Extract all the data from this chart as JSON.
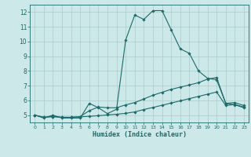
{
  "xlabel": "Humidex (Indice chaleur)",
  "background_color": "#cce8e8",
  "grid_color": "#aacccc",
  "line_color": "#1a6b6b",
  "xmin": -0.5,
  "xmax": 23.5,
  "ymin": 4.5,
  "ymax": 12.5,
  "yticks": [
    5,
    6,
    7,
    8,
    9,
    10,
    11,
    12
  ],
  "xticks": [
    0,
    1,
    2,
    3,
    4,
    5,
    6,
    7,
    8,
    9,
    10,
    11,
    12,
    13,
    14,
    15,
    16,
    17,
    18,
    19,
    20,
    21,
    22,
    23
  ],
  "line1_x": [
    0,
    1,
    2,
    3,
    4,
    5,
    6,
    7,
    8,
    9,
    10,
    11,
    12,
    13,
    14,
    15,
    16,
    17,
    18,
    19,
    20,
    21,
    22,
    23
  ],
  "line1_y": [
    5.0,
    4.8,
    5.0,
    4.8,
    4.8,
    4.8,
    5.8,
    5.5,
    5.1,
    5.4,
    10.1,
    11.8,
    11.5,
    12.1,
    12.1,
    10.8,
    9.5,
    9.2,
    8.0,
    7.5,
    7.4,
    5.8,
    5.7,
    5.5
  ],
  "line2_x": [
    0,
    1,
    2,
    3,
    4,
    5,
    6,
    7,
    8,
    9,
    10,
    11,
    12,
    13,
    14,
    15,
    16,
    17,
    18,
    19,
    20,
    21,
    22,
    23
  ],
  "line2_y": [
    5.0,
    4.85,
    4.9,
    4.85,
    4.85,
    4.9,
    5.3,
    5.55,
    5.5,
    5.5,
    5.7,
    5.85,
    6.1,
    6.35,
    6.55,
    6.75,
    6.9,
    7.05,
    7.2,
    7.45,
    7.55,
    5.8,
    5.85,
    5.65
  ],
  "line3_x": [
    0,
    1,
    2,
    3,
    4,
    5,
    6,
    7,
    8,
    9,
    10,
    11,
    12,
    13,
    14,
    15,
    16,
    17,
    18,
    19,
    20,
    21,
    22,
    23
  ],
  "line3_y": [
    5.0,
    4.85,
    4.9,
    4.85,
    4.85,
    4.88,
    4.92,
    4.96,
    5.01,
    5.06,
    5.12,
    5.22,
    5.38,
    5.52,
    5.67,
    5.82,
    5.97,
    6.12,
    6.27,
    6.42,
    6.57,
    5.65,
    5.72,
    5.55
  ]
}
